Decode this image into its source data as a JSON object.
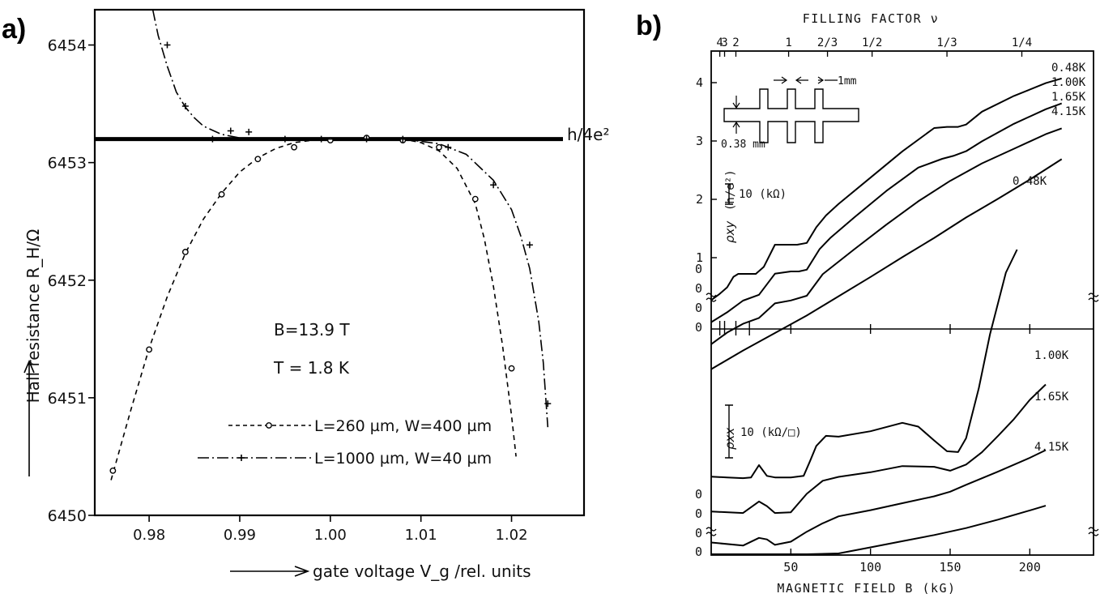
{
  "panel_a": {
    "panel_label": "a)",
    "ylabel": "Hall resistance R_H/Ω",
    "xlabel": "gate voltage V_g /rel. units",
    "plateau_label": "h/4e²",
    "annotation_B": "B=13.9 T",
    "annotation_T": "T = 1.8 K",
    "legend": [
      {
        "marker": "circle",
        "style": "dashed",
        "label": "L=260 µm, W=400 µm"
      },
      {
        "marker": "plus",
        "style": "dash-dot",
        "label": "L=1000 µm, W=40 µm"
      }
    ]
  },
  "panel_b": {
    "panel_label": "b)",
    "top_axis_title": "FILLING FACTOR ν",
    "top_axis_ticks": [
      {
        "label": "4",
        "B": 5.4
      },
      {
        "label": "3",
        "B": 8.4
      },
      {
        "label": "2",
        "B": 15.5
      },
      {
        "label": "1",
        "B": 48.6
      },
      {
        "label": "2/3",
        "B": 73.0
      },
      {
        "label": "1/2",
        "B": 101.0
      },
      {
        "label": "1/3",
        "B": 148.0
      },
      {
        "label": "1/4",
        "B": 195.0
      }
    ],
    "xlabel": "MAGNETIC FIELD B (kG)",
    "rxy_label": "ρxy",
    "rxy_unit": "(h/e²)",
    "rxx_label": "ρxx",
    "rxy_scale_bar": "10 (kΩ)",
    "rxx_scale_bar": "10 (kΩ/□)",
    "inset_dim_width": "1mm",
    "inset_dim_height": "0.38 mm",
    "zero_labels": [
      "0",
      "0",
      "0",
      "0"
    ],
    "rxy_temperatures": [
      "0.48K",
      "1.00K",
      "1.65K",
      "4.15K"
    ],
    "rxx_temperatures": [
      "0.48K",
      "1.00K",
      "1.65K",
      "4.15K"
    ]
  },
  "chart_data": [
    {
      "type": "scatter",
      "xlabel": "gate voltage V_g /rel. units",
      "ylabel": "Hall resistance R_H/Ω",
      "xlim": [
        0.974,
        1.028
      ],
      "ylim": [
        6450,
        6454.3
      ],
      "x_ticks": [
        0.98,
        0.99,
        1.0,
        1.01,
        1.02
      ],
      "y_ticks": [
        6450,
        6451,
        6452,
        6453,
        6454
      ],
      "reference_line": {
        "label": "h/4e²",
        "y": 6453.2
      },
      "series": [
        {
          "name": "L=260 µm, W=400 µm",
          "marker": "circle",
          "x": [
            0.976,
            0.98,
            0.984,
            0.988,
            0.992,
            0.996,
            1.0,
            1.004,
            1.008,
            1.012,
            1.016,
            1.02
          ],
          "y": [
            6450.38,
            6451.41,
            6452.24,
            6452.73,
            6453.03,
            6453.13,
            6453.19,
            6453.21,
            6453.19,
            6453.13,
            6452.69,
            6451.25
          ],
          "curve_x": [
            0.9758,
            0.978,
            0.98,
            0.982,
            0.984,
            0.986,
            0.988,
            0.99,
            0.992,
            0.994,
            0.996,
            0.998,
            1.0,
            1.004,
            1.008,
            1.01,
            1.012,
            1.014,
            1.016,
            1.017,
            1.018,
            1.019,
            1.02,
            1.0205
          ],
          "curve_y": [
            6450.3,
            6450.9,
            6451.42,
            6451.86,
            6452.23,
            6452.52,
            6452.74,
            6452.92,
            6453.04,
            6453.12,
            6453.17,
            6453.19,
            6453.2,
            6453.2,
            6453.2,
            6453.17,
            6453.1,
            6452.95,
            6452.65,
            6452.35,
            6451.95,
            6451.45,
            6450.85,
            6450.5
          ]
        },
        {
          "name": "L=1000 µm, W=40 µm",
          "marker": "plus",
          "x": [
            0.982,
            0.984,
            0.987,
            0.989,
            0.991,
            0.995,
            0.999,
            1.004,
            1.008,
            1.013,
            1.018,
            1.022,
            1.024
          ],
          "y": [
            6454.0,
            6453.48,
            6453.2,
            6453.27,
            6453.26,
            6453.2,
            6453.2,
            6453.2,
            6453.2,
            6453.13,
            6452.81,
            6452.3,
            6450.95
          ],
          "curve_x": [
            0.9804,
            0.981,
            0.982,
            0.983,
            0.984,
            0.985,
            0.986,
            0.988,
            0.99,
            0.994,
            1.0,
            1.008,
            1.012,
            1.015,
            1.018,
            1.02,
            1.021,
            1.022,
            1.023,
            1.0235,
            1.024
          ],
          "curve_y": [
            6454.3,
            6454.08,
            6453.82,
            6453.6,
            6453.47,
            6453.38,
            6453.31,
            6453.24,
            6453.21,
            6453.2,
            6453.2,
            6453.2,
            6453.16,
            6453.07,
            6452.85,
            6452.6,
            6452.38,
            6452.1,
            6451.65,
            6451.3,
            6450.75
          ]
        }
      ]
    },
    {
      "type": "line",
      "xlabel": "MAGNETIC FIELD B (kG)",
      "x_ticks": [
        50,
        100,
        150,
        200
      ],
      "xlim": [
        0,
        240
      ],
      "panels": [
        {
          "name": "ρxy (h/e²)",
          "ylim": [
            0,
            4.15
          ],
          "y_ticks": [
            1,
            2,
            3,
            4
          ],
          "series": [
            {
              "name": "0.48K",
              "B": [
                0,
                5,
                10,
                14,
                17,
                22,
                28,
                33,
                40,
                48,
                54,
                60,
                66,
                72,
                80,
                100,
                120,
                140,
                148,
                155,
                160,
                170,
                190,
                210,
                220
              ],
              "rho": [
                0.05,
                0.15,
                0.27,
                0.45,
                0.5,
                0.5,
                0.5,
                0.62,
                1.0,
                1.0,
                1.0,
                1.03,
                1.3,
                1.5,
                1.7,
                2.15,
                2.6,
                3.0,
                3.02,
                3.02,
                3.06,
                3.28,
                3.55,
                3.77,
                3.85
              ]
            },
            {
              "name": "1.00K",
              "B": [
                0,
                10,
                20,
                30,
                40,
                50,
                55,
                60,
                68,
                75,
                90,
                110,
                130,
                145,
                152,
                160,
                170,
                190,
                210,
                220
              ],
              "rho": [
                -0.05,
                0.12,
                0.32,
                0.42,
                0.78,
                0.82,
                0.82,
                0.85,
                1.2,
                1.4,
                1.75,
                2.2,
                2.6,
                2.75,
                2.8,
                2.88,
                3.05,
                3.35,
                3.6,
                3.7
              ]
            },
            {
              "name": "1.65K",
              "B": [
                0,
                10,
                20,
                30,
                40,
                50,
                60,
                70,
                90,
                110,
                130,
                150,
                170,
                190,
                210,
                220
              ],
              "rho": [
                -0.15,
                0.05,
                0.2,
                0.3,
                0.55,
                0.6,
                0.68,
                1.05,
                1.48,
                1.9,
                2.3,
                2.65,
                2.95,
                3.2,
                3.45,
                3.55
              ]
            },
            {
              "name": "4.15K",
              "B": [
                0,
                20,
                40,
                60,
                80,
                100,
                120,
                140,
                160,
                180,
                200,
                220
              ],
              "rho": [
                -0.3,
                0.02,
                0.32,
                0.62,
                0.95,
                1.28,
                1.62,
                1.95,
                2.3,
                2.62,
                2.95,
                3.3
              ]
            }
          ]
        },
        {
          "name": "ρxx",
          "series": [
            {
              "name": "0.48K",
              "B": [
                0,
                10,
                20,
                25,
                30,
                35,
                40,
                50,
                58,
                62,
                66,
                72,
                80,
                100,
                120,
                130,
                140,
                148,
                155,
                160,
                168,
                175,
                185,
                192
              ],
              "rho": [
                2.5,
                2.4,
                2.3,
                2.4,
                4.0,
                2.6,
                2.4,
                2.4,
                2.6,
                4.5,
                6.5,
                7.8,
                7.7,
                8.4,
                9.5,
                9.0,
                7.2,
                5.8,
                5.7,
                7.5,
                14.0,
                21.0,
                29.0,
                32.0
              ]
            },
            {
              "name": "1.00K",
              "B": [
                0,
                20,
                30,
                35,
                40,
                50,
                60,
                70,
                80,
                100,
                120,
                140,
                150,
                160,
                170,
                180,
                190,
                200,
                210
              ],
              "rho": [
                0.5,
                0.3,
                1.8,
                1.2,
                0.3,
                0.4,
                2.8,
                4.5,
                5.0,
                5.6,
                6.4,
                6.3,
                5.8,
                6.6,
                8.2,
                10.3,
                12.5,
                15.0,
                17.0
              ]
            },
            {
              "name": "1.65K",
              "B": [
                0,
                20,
                30,
                35,
                40,
                50,
                60,
                70,
                80,
                100,
                120,
                140,
                150,
                160,
                180,
                200,
                210
              ],
              "rho": [
                -1.0,
                -1.4,
                -0.4,
                -0.6,
                -1.3,
                -0.9,
                0.4,
                1.5,
                2.4,
                3.2,
                4.1,
                5.0,
                5.6,
                6.5,
                8.2,
                10.0,
                11.0
              ]
            },
            {
              "name": "4.15K",
              "B": [
                0,
                20,
                40,
                50,
                60,
                80,
                100,
                120,
                140,
                160,
                180,
                200,
                210
              ],
              "rho": [
                -3.2,
                -2.5,
                -2.0,
                -1.5,
                -0.8,
                0.1,
                0.9,
                1.7,
                2.5,
                3.4,
                4.5,
                5.7,
                6.3
              ]
            }
          ]
        }
      ]
    }
  ]
}
